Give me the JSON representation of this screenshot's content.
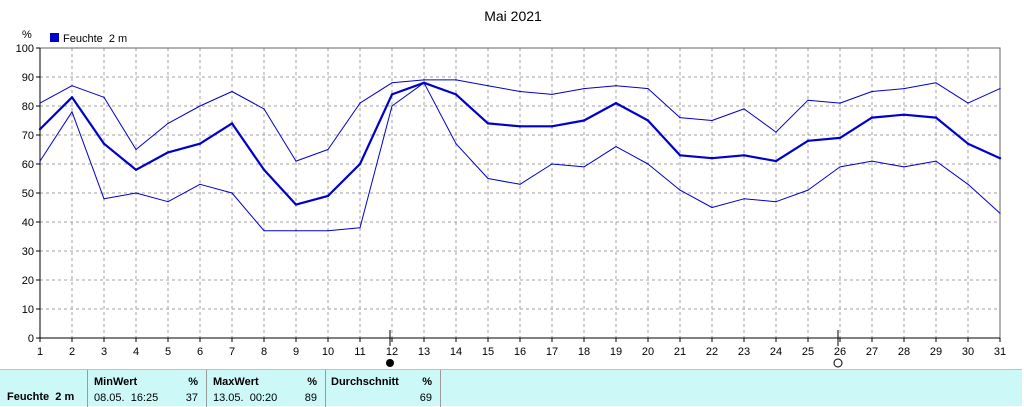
{
  "chart_data": {
    "type": "line",
    "title": "Mai 2021",
    "ylabel": "%",
    "ylim": [
      0,
      100
    ],
    "yticks": [
      0,
      10,
      20,
      30,
      40,
      50,
      60,
      70,
      80,
      90,
      100
    ],
    "x": [
      1,
      2,
      3,
      4,
      5,
      6,
      7,
      8,
      9,
      10,
      11,
      12,
      13,
      14,
      15,
      16,
      17,
      18,
      19,
      20,
      21,
      22,
      23,
      24,
      25,
      26,
      27,
      28,
      29,
      30,
      31
    ],
    "xlim": [
      1,
      31
    ],
    "grid": true,
    "legend": {
      "position": "top-left",
      "entries": [
        "Feuchte  2 m"
      ]
    },
    "series": [
      {
        "name": "Feuchte  2 m",
        "role": "mean",
        "values": [
          72,
          83,
          67,
          58,
          64,
          67,
          74,
          58,
          46,
          49,
          60,
          84,
          88,
          84,
          74,
          73,
          73,
          75,
          81,
          75,
          63,
          62,
          63,
          61,
          68,
          69,
          76,
          77,
          76,
          67,
          62
        ]
      },
      {
        "role": "max",
        "values": [
          81,
          87,
          83,
          65,
          74,
          80,
          85,
          79,
          61,
          65,
          81,
          88,
          89,
          89,
          87,
          85,
          84,
          86,
          87,
          86,
          76,
          75,
          79,
          71,
          82,
          81,
          85,
          86,
          88,
          81,
          86
        ]
      },
      {
        "role": "min",
        "values": [
          61,
          78,
          48,
          50,
          47,
          53,
          50,
          37,
          37,
          37,
          38,
          80,
          88,
          67,
          55,
          53,
          60,
          59,
          66,
          60,
          51,
          45,
          48,
          47,
          51,
          59,
          61,
          59,
          61,
          53,
          43
        ]
      }
    ],
    "moon_markers": [
      {
        "day": 12,
        "phase": "new-moon"
      },
      {
        "day": 26,
        "phase": "full-moon"
      }
    ],
    "colors": {
      "line": "#0000cc",
      "grid": "#a0a0a0"
    }
  },
  "stats": {
    "series_label": "Feuchte  2 m",
    "min": {
      "label": "MinWert",
      "unit": "%",
      "datetime": "08.05.  16:25",
      "value": "37"
    },
    "max": {
      "label": "MaxWert",
      "unit": "%",
      "datetime": "13.05.  00:20",
      "value": "89"
    },
    "avg": {
      "label": "Durchschnitt",
      "unit": "%",
      "value": "69"
    }
  },
  "colors": {
    "stats_background": "#ccf8f8"
  }
}
